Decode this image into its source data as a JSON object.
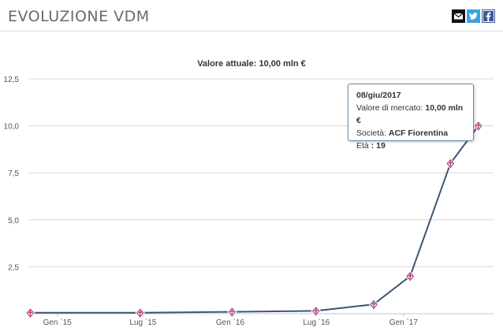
{
  "header": {
    "title": "EVOLUZIONE VDM",
    "share": [
      {
        "name": "email-icon",
        "color": "#111111"
      },
      {
        "name": "twitter-icon",
        "color": "#3fa2dd"
      },
      {
        "name": "facebook-icon",
        "color": "#3b5998"
      }
    ]
  },
  "chart_data": {
    "type": "line",
    "title": "Valore attuale: 10,00 mln €",
    "xlabel": "",
    "ylabel": "",
    "y_ticks": [
      "12,5",
      "10,0",
      "7,5",
      "5,0",
      "2,5"
    ],
    "ylim": [
      0,
      12.5
    ],
    "x_ticks": [
      {
        "label": "Gen `15",
        "date": "2015-01-01"
      },
      {
        "label": "Lug `15",
        "date": "2015-07-01"
      },
      {
        "label": "Gen `16",
        "date": "2016-01-01"
      },
      {
        "label": "Lug `16",
        "date": "2016-07-01"
      },
      {
        "label": "Gen `17",
        "date": "2017-01-01"
      }
    ],
    "xlim": [
      "2014-11-01",
      "2017-07-10"
    ],
    "grid": true,
    "legend": "none",
    "line_color": "#3b5576",
    "marker_color": "#7b3f9e",
    "marker_accent": "#d9262d",
    "series": [
      {
        "points": [
          {
            "x": "2014-11-05",
            "y": 0.05
          },
          {
            "x": "2015-06-25",
            "y": 0.05
          },
          {
            "x": "2016-01-05",
            "y": 0.1
          },
          {
            "x": "2016-06-30",
            "y": 0.15
          },
          {
            "x": "2016-10-30",
            "y": 0.5
          },
          {
            "x": "2017-01-15",
            "y": 2.0
          },
          {
            "x": "2017-04-10",
            "y": 8.0
          },
          {
            "x": "2017-06-08",
            "y": 10.0
          }
        ]
      }
    ]
  },
  "tooltip": {
    "date": "08/giu/2017",
    "market_value_label": "Valore di mercato:",
    "market_value": "10,00 mln €",
    "club_label": "Società:",
    "club": "ACF Fiorentina",
    "age_label": "Età",
    "age": ": 19"
  }
}
